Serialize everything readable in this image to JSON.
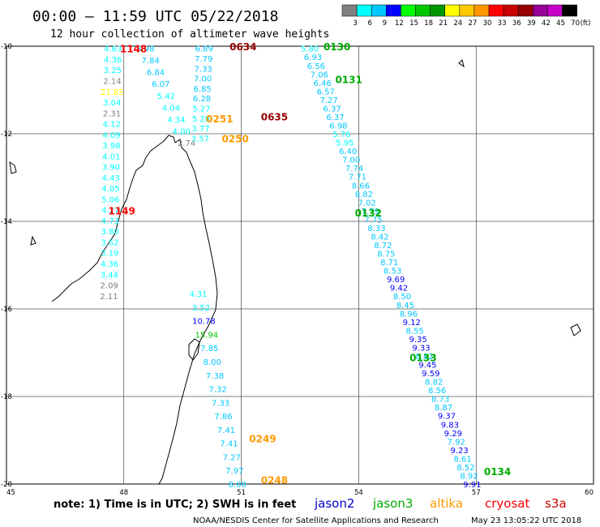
{
  "header": {
    "title": "00:00 – 11:59 UTC 05/22/2018",
    "subtitle": "12 hour collection of altimeter wave heights"
  },
  "colorbar": {
    "unit": "(ft)",
    "labels": [
      "3",
      "6",
      "9",
      "12",
      "15",
      "18",
      "21",
      "24",
      "27",
      "30",
      "33",
      "36",
      "39",
      "42",
      "45",
      "70"
    ],
    "colors": [
      "#808080",
      "#00ffff",
      "#00c8ff",
      "#0000ff",
      "#00ff00",
      "#00c800",
      "#009600",
      "#ffff00",
      "#ffc800",
      "#ff9600",
      "#ff0000",
      "#c80000",
      "#960000",
      "#960096",
      "#c800c8",
      "#000000"
    ]
  },
  "axes": {
    "lon_labels": [
      "45",
      "48",
      "51",
      "54",
      "57",
      "60"
    ],
    "lat_labels": [
      "-10",
      "-12",
      "-14",
      "-16",
      "-18",
      "-20"
    ]
  },
  "legend": {
    "note": "note: 1) Time is in UTC; 2) SWH is in feet",
    "satellites": [
      {
        "name": "jason2",
        "color": "#0000cc"
      },
      {
        "name": "jason3",
        "color": "#00aa00"
      },
      {
        "name": "altika",
        "color": "#ff9900"
      },
      {
        "name": "cryosat",
        "color": "#ff0000"
      },
      {
        "name": "s3a",
        "color": "#cc0000"
      }
    ]
  },
  "footer": {
    "credit": "NOAA/NESDIS Center for Satellite Applications and Research",
    "timestamp": "May 23 13:05:22 UTC 2018"
  },
  "times": [
    {
      "label": "1148",
      "color": "#ff0000",
      "lon": 47.9,
      "lat": -10.05
    },
    {
      "label": "1149",
      "color": "#ff0000",
      "lon": 47.6,
      "lat": -13.75
    },
    {
      "label": "0634",
      "color": "#960000",
      "lon": 50.7,
      "lat": -10.0
    },
    {
      "label": "0635",
      "color": "#960000",
      "lon": 51.5,
      "lat": -11.6
    },
    {
      "label": "0251",
      "color": "#ff9900",
      "lon": 50.1,
      "lat": -11.65
    },
    {
      "label": "0250",
      "color": "#ff9900",
      "lon": 50.5,
      "lat": -12.1
    },
    {
      "label": "0249",
      "color": "#ff9900",
      "lon": 51.2,
      "lat": -18.95
    },
    {
      "label": "0248",
      "color": "#ff9900",
      "lon": 51.5,
      "lat": -19.9
    },
    {
      "label": "0130",
      "color": "#00aa00",
      "lon": 53.1,
      "lat": -10.0
    },
    {
      "label": "0131",
      "color": "#00aa00",
      "lon": 53.4,
      "lat": -10.75
    },
    {
      "label": "0132",
      "color": "#00aa00",
      "lon": 53.9,
      "lat": -13.8
    },
    {
      "label": "0133",
      "color": "#00aa00",
      "lon": 55.3,
      "lat": -17.1
    },
    {
      "label": "0134",
      "color": "#00aa00",
      "lon": 57.2,
      "lat": -19.7
    }
  ],
  "tracks": [
    {
      "name": "cryosat-west",
      "start": [
        47.72,
        -10.05
      ],
      "end": [
        47.62,
        -15.7
      ],
      "values": [
        "4.63",
        "4.36",
        "3.25",
        "2.14",
        "21.65",
        "3.04",
        "2.31",
        "4.12",
        "4.09",
        "3.98",
        "4.01",
        "3.90",
        "4.43",
        "4.05",
        "5.06",
        "4.27",
        "4.73",
        "3.80",
        "3.52",
        "3.19",
        "4.36",
        "3.44",
        "2.09",
        "2.11"
      ]
    },
    {
      "name": "altika-upper",
      "start": [
        48.55,
        -10.05
      ],
      "end": [
        49.6,
        -12.2
      ],
      "values": [
        "6.98",
        "7.84",
        "6.84",
        "6.07",
        "5.42",
        "4.04",
        "4.34",
        "4.00",
        "2.74"
      ]
    },
    {
      "name": "s3a-upper",
      "start": [
        50.05,
        -10.05
      ],
      "end": [
        49.95,
        -12.1
      ],
      "values": [
        "6.89",
        "7.79",
        "7.33",
        "7.00",
        "6.85",
        "6.28",
        "5.27",
        "5.28",
        "3.77",
        "3.57"
      ]
    },
    {
      "name": "altika-lower",
      "start": [
        49.9,
        -15.65
      ],
      "end": [
        50.9,
        -20.0
      ],
      "values": [
        "4.31",
        "3.52",
        "10.78",
        "15.94",
        "7.85",
        "8.00",
        "7.38",
        "7.32",
        "7.33",
        "7.86",
        "7.41",
        "7.41",
        "7.27",
        "7.97",
        "8.00"
      ]
    },
    {
      "name": "jason3",
      "start": [
        52.75,
        -10.05
      ],
      "end": [
        56.9,
        -20.0
      ],
      "values": [
        "5.80",
        "6.93",
        "6.56",
        "7.06",
        "6.46",
        "6.57",
        "7.27",
        "6.37",
        "6.37",
        "6.98",
        "5.76",
        "5.95",
        "6.40",
        "7.00",
        "7.74",
        "7.71",
        "8.66",
        "8.82",
        "7.02",
        "7.79",
        "7.75",
        "8.33",
        "8.42",
        "8.72",
        "8.75",
        "8.71",
        "8.53",
        "9.69",
        "9.42",
        "8.50",
        "8.45",
        "8.96",
        "9.12",
        "8.55",
        "9.35",
        "9.33",
        "8.82",
        "9.45",
        "9.59",
        "8.82",
        "8.56",
        "8.73",
        "8.87",
        "9.37",
        "9.83",
        "9.29",
        "7.92",
        "9.23",
        "8.61",
        "8.52",
        "8.92",
        "9.91"
      ]
    }
  ]
}
